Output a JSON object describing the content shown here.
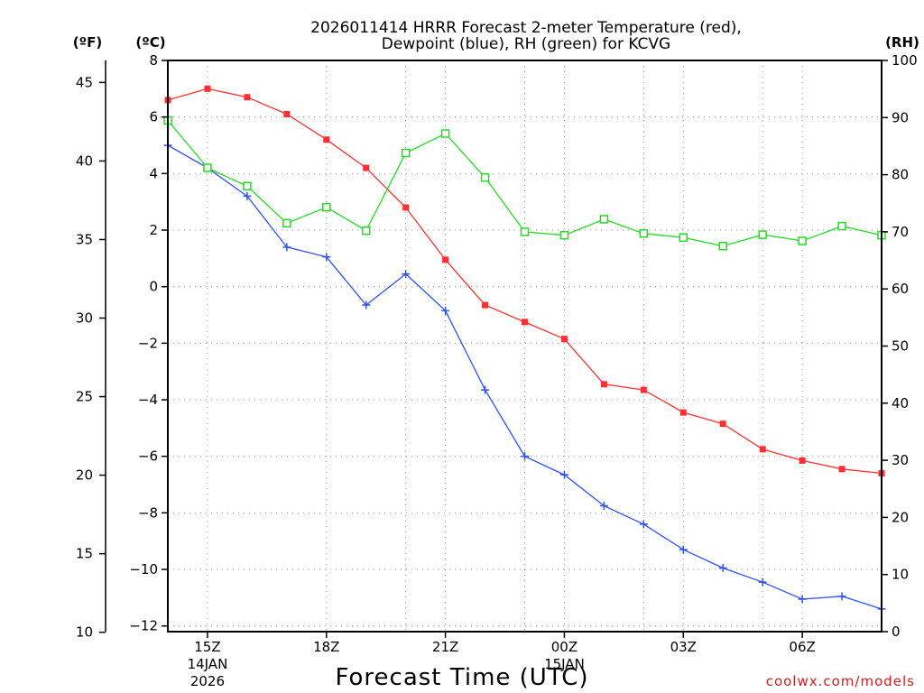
{
  "chart_data": {
    "type": "line",
    "title_line1": "2026011414 HRRR Forecast 2-meter Temperature (red),",
    "title_line2": "Dewpoint (blue), RH (green) for KCVG",
    "left_unit_f": "(ºF)",
    "left_unit_c": "(ºC)",
    "right_unit": "(RH)",
    "xlabel": "Forecast Time (UTC)",
    "credit": "coolwx.com/models",
    "hours_range": [
      14,
      32
    ],
    "hours": [
      14,
      15,
      16,
      17,
      18,
      19,
      20,
      21,
      22,
      23,
      24,
      25,
      26,
      27,
      28,
      29,
      30,
      31,
      32
    ],
    "x_ticks": [
      {
        "hour": 15,
        "label": "15Z",
        "sub1": "14JAN",
        "sub2": "2026"
      },
      {
        "hour": 18,
        "label": "18Z",
        "sub1": "",
        "sub2": ""
      },
      {
        "hour": 21,
        "label": "21Z",
        "sub1": "",
        "sub2": ""
      },
      {
        "hour": 24,
        "label": "00Z",
        "sub1": "15JAN",
        "sub2": ""
      },
      {
        "hour": 27,
        "label": "03Z",
        "sub1": "",
        "sub2": ""
      },
      {
        "hour": 30,
        "label": "06Z",
        "sub1": "",
        "sub2": ""
      }
    ],
    "celsius_axis": {
      "range": [
        -12.2,
        8
      ],
      "ticks": [
        8,
        6,
        4,
        2,
        0,
        -2,
        -4,
        -6,
        -8,
        -10,
        -12
      ]
    },
    "fahrenheit_axis": {
      "ticks": [
        45,
        40,
        35,
        30,
        25,
        20,
        15,
        10
      ]
    },
    "rh_axis": {
      "range": [
        0,
        100
      ],
      "ticks": [
        100,
        90,
        80,
        70,
        60,
        50,
        40,
        30,
        20,
        10,
        0
      ]
    },
    "series": [
      {
        "name": "2-meter Temperature",
        "color": "#ff3030",
        "units": "C",
        "marker": "filled-square",
        "values": [
          6.6,
          7.0,
          6.7,
          6.1,
          5.2,
          4.2,
          2.8,
          0.95,
          -0.65,
          -1.25,
          -1.85,
          -3.45,
          -3.65,
          -4.45,
          -4.85,
          -5.75,
          -6.15,
          -6.45,
          -6.6
        ]
      },
      {
        "name": "Dewpoint",
        "color": "#3050ff",
        "units": "C",
        "marker": "plus",
        "values": [
          5.0,
          4.2,
          3.2,
          1.4,
          1.05,
          -0.65,
          0.45,
          -0.85,
          -3.65,
          -6.0,
          -6.65,
          -7.75,
          -8.4,
          -9.3,
          -9.95,
          -10.45,
          -11.05,
          -10.95,
          -11.4
        ]
      },
      {
        "name": "RH",
        "color": "#22dd22",
        "units": "%",
        "marker": "open-square",
        "values": [
          89.5,
          81.2,
          78.0,
          71.5,
          74.3,
          70.2,
          83.8,
          87.2,
          79.5,
          70.0,
          69.4,
          72.2,
          69.7,
          69.0,
          67.5,
          69.5,
          68.4,
          71.0,
          69.4
        ]
      }
    ]
  }
}
